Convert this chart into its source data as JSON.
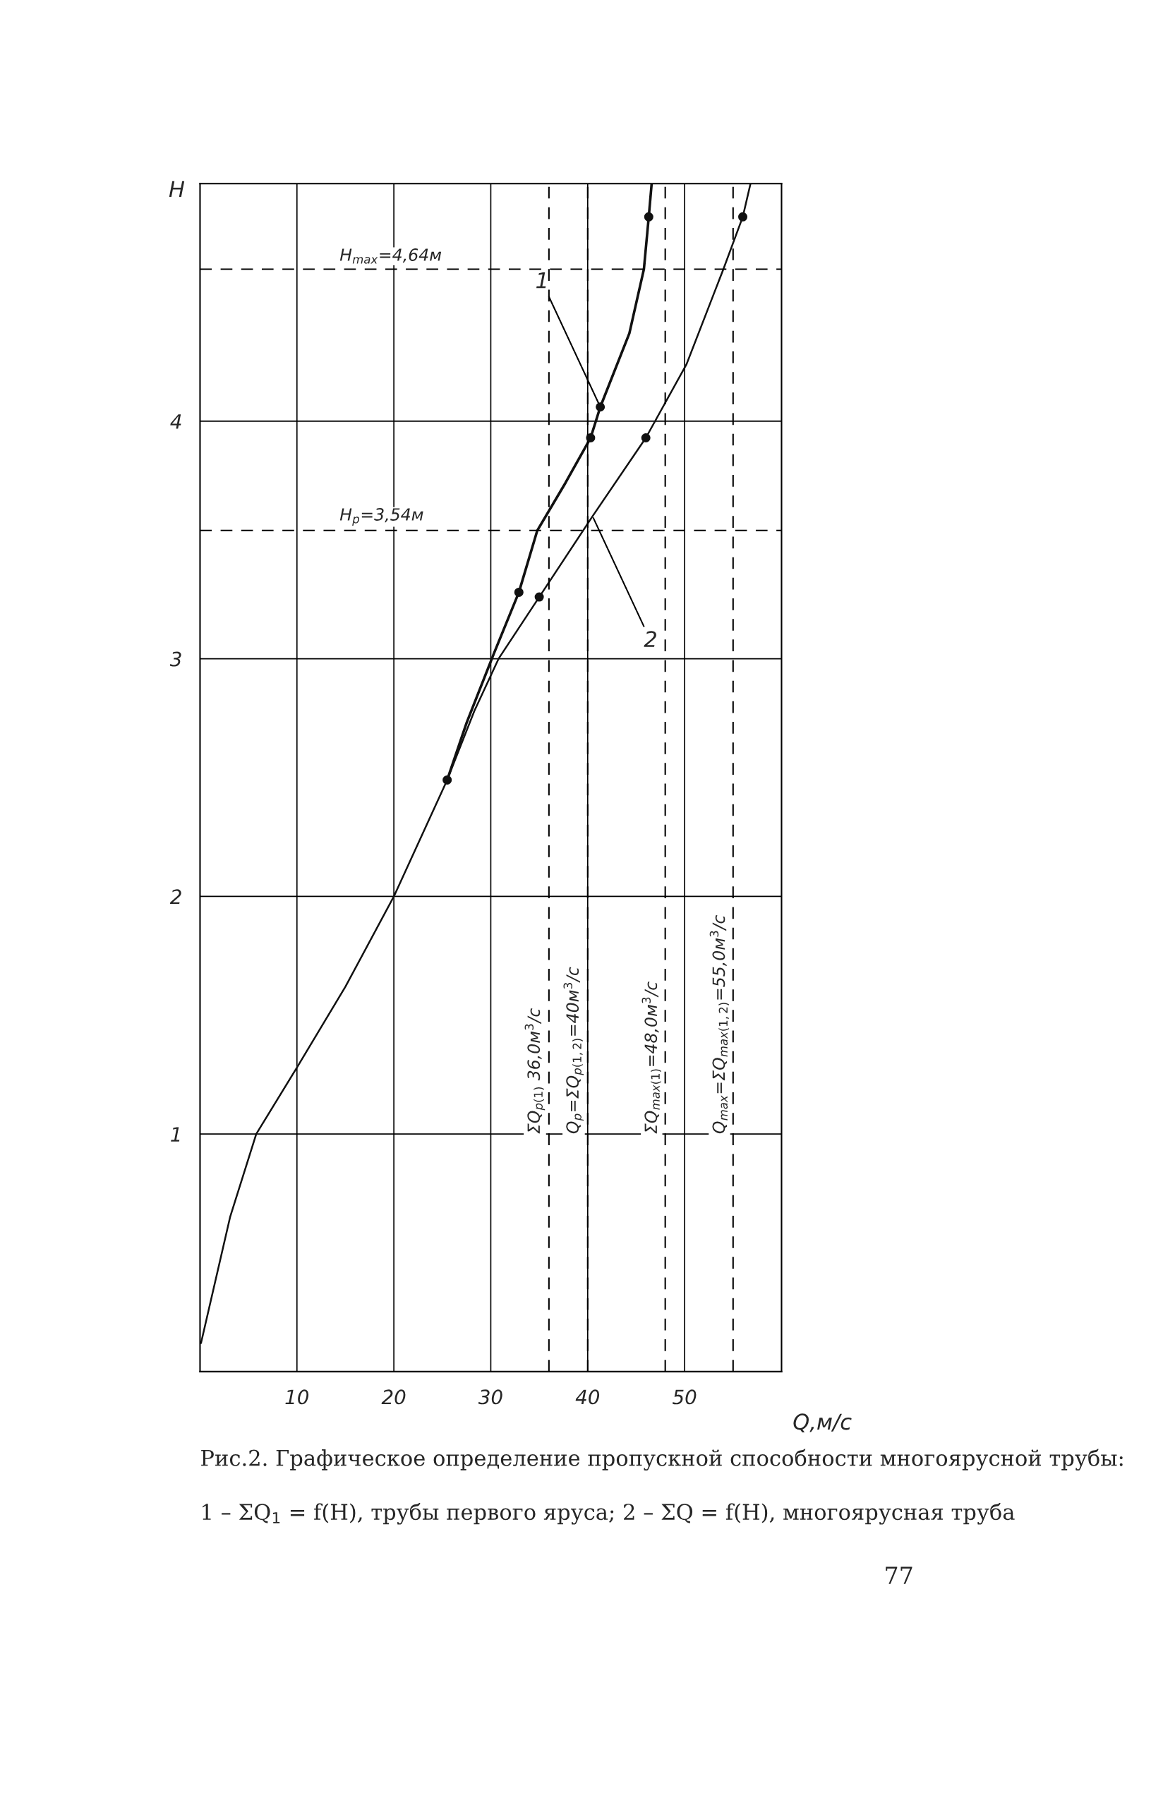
{
  "chart_data": {
    "type": "line",
    "title": "Рис.2. Графическое определение пропускной способности многоярусной трубы:",
    "xlabel": "Q,м/с",
    "ylabel": "H",
    "xlim": [
      0,
      60
    ],
    "ylim": [
      0,
      5
    ],
    "xticks": [
      10,
      20,
      30,
      40,
      50
    ],
    "yticks": [
      1,
      2,
      3,
      4
    ],
    "grid": true,
    "line_style": "solid",
    "series": [
      {
        "color": "#111111",
        "x": [
          25.5,
          27.5,
          30.3,
          32.9,
          34.8,
          37.7,
          40.3,
          41.3,
          44.3,
          45.8,
          46.3,
          46.6
        ],
        "values": [
          2.49,
          2.73,
          3.02,
          3.28,
          3.54,
          3.74,
          3.93,
          4.06,
          4.37,
          4.64,
          4.86,
          5.0
        ]
      },
      {
        "color": "#111111",
        "x": [
          0.1,
          3.1,
          5.8,
          10,
          15,
          20,
          25.5,
          28.3,
          30.8,
          35,
          40.5,
          46,
          50.2,
          54,
          56,
          56.8
        ],
        "values": [
          0.12,
          0.65,
          1.0,
          1.28,
          1.62,
          2.0,
          2.49,
          2.78,
          3.0,
          3.26,
          3.6,
          3.93,
          4.24,
          4.64,
          4.86,
          5.0
        ]
      },
      {
        "type": "scatter",
        "marker": "circle",
        "color": "#111111",
        "x": [
          25.5,
          32.9,
          40.3,
          41.3,
          46.3
        ],
        "values": [
          2.49,
          3.28,
          3.93,
          4.06,
          4.86
        ]
      },
      {
        "type": "scatter",
        "marker": "circle",
        "color": "#111111",
        "x": [
          35,
          46,
          56
        ],
        "values": [
          3.26,
          3.93,
          4.86
        ]
      }
    ],
    "ref_lines": [
      {
        "axis": "y",
        "value": 4.64,
        "label": "H$_{max}$=4,64м",
        "line_style": "dashed"
      },
      {
        "axis": "y",
        "value": 3.54,
        "label": "H$_{р}$=3,54м",
        "line_style": "dashed"
      },
      {
        "axis": "x",
        "value": 36,
        "label": "ΣQ$_{р(1)}$ 36,0м$^{3}$/с",
        "line_style": "dashed"
      },
      {
        "axis": "x",
        "value": 40,
        "label": "Q$_{р}$=ΣQ$_{р(1,2)}$=40м$^{3}$/с",
        "line_style": "dashed"
      },
      {
        "axis": "x",
        "value": 48,
        "label": "ΣQ$_{max(1)}$=48,0м$^{3}$/с",
        "line_style": "dashed"
      },
      {
        "axis": "x",
        "value": 55,
        "label": "Q$_{max}$=ΣQ$_{max(1,2)}$=55,0м$^{3}$/с",
        "line_style": "dashed"
      }
    ],
    "annotations": [
      {
        "text": "1",
        "x": 41.3,
        "y": 4.06
      },
      {
        "text": "2",
        "x": 40.5,
        "y": 3.6
      },
      "1 – ΣQ$_{1}$ = f(H), трубы первого яруса; 2 – ΣQ = f(H), многоярусная труба",
      "77"
    ]
  }
}
